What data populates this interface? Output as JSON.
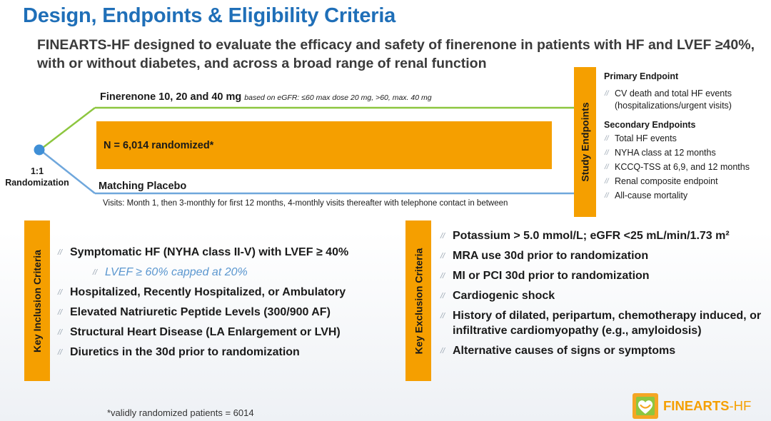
{
  "title": "Design, Endpoints & Eligibility Criteria",
  "subtitle": "FINEARTS-HF designed to evaluate the efficacy and safety of finerenone in patients with HF and LVEF ≥40%, with or without diabetes, and across a broad range of renal function",
  "design": {
    "randomization_ratio": "1:1",
    "randomization_label": "Randomization",
    "finerenone_label": "Finerenone 10, 20 and 40 mg",
    "finerenone_note": "based on eGFR: ≤60 max dose 20 mg, >60, max. 40 mg",
    "n_randomized": "N = 6,014 randomized*",
    "placebo_label": "Matching Placebo",
    "visits": "Visits: Month 1, then 3-monthly for first 12 months, 4-monthly visits thereafter with telephone contact in between",
    "green_color": "#8dc63f",
    "blue_color": "#6fa7dc"
  },
  "endpoints": {
    "tab_label": "Study Endpoints",
    "primary_heading": "Primary Endpoint",
    "primary_items": [
      "CV death and total HF events (hospitalizations/urgent visits)"
    ],
    "secondary_heading": "Secondary Endpoints",
    "secondary_items": [
      "Total HF events",
      "NYHA class at 12 months",
      "KCCQ-TSS at 6,9, and 12 months",
      "Renal composite endpoint",
      "All-cause mortality"
    ]
  },
  "inclusion": {
    "tab_label": "Key Inclusion Criteria",
    "items": [
      "Symptomatic HF (NYHA class II-V) with LVEF ≥ 40%",
      "LVEF ≥ 60% capped at 20%",
      "Hospitalized, Recently Hospitalized, or Ambulatory",
      "Elevated Natriuretic Peptide Levels (300/900 AF)",
      "Structural Heart Disease (LA Enlargement or LVH)",
      "Diuretics in the 30d prior to randomization"
    ]
  },
  "exclusion": {
    "tab_label": "Key Exclusion Criteria",
    "items": [
      "Potassium > 5.0 mmol/L; eGFR <25 mL/min/1.73 m²",
      "MRA use 30d prior to randomization",
      "MI or PCI 30d prior to randomization",
      "Cardiogenic shock",
      "History of dilated, peripartum, chemotherapy induced, or infiltrative cardiomyopathy (e.g., amyloidosis)",
      "Alternative causes of signs or symptoms"
    ]
  },
  "footnote": "*validly randomized patients = 6014",
  "logo": {
    "name": "FINEARTS",
    "suffix": "-HF",
    "icon": "heart-logo-icon",
    "accent_color": "#f59f00"
  },
  "bullet_glyph": "//"
}
